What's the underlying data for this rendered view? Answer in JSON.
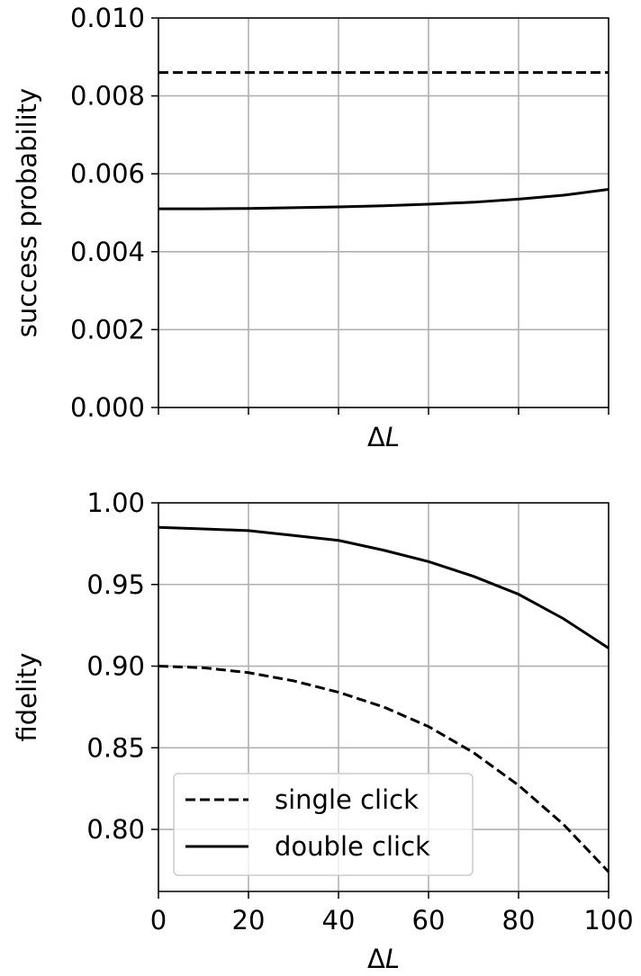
{
  "chart_data": [
    {
      "type": "line",
      "title": "",
      "xlabel": "ΔL",
      "ylabel": "success probability",
      "xlim": [
        0,
        100
      ],
      "ylim": [
        0,
        0.01
      ],
      "xticks": [
        0,
        20,
        40,
        60,
        80,
        100
      ],
      "show_x_tick_labels": false,
      "yticks": [
        0.0,
        0.002,
        0.004,
        0.006,
        0.008,
        0.01
      ],
      "ytick_labels": [
        "0.000",
        "0.002",
        "0.004",
        "0.006",
        "0.008",
        "0.010"
      ],
      "grid": true,
      "series": [
        {
          "style": "dashed",
          "color": "#000000",
          "x": [
            0,
            20,
            40,
            60,
            80,
            100
          ],
          "y": [
            0.0086,
            0.0086,
            0.0086,
            0.0086,
            0.0086,
            0.0086
          ]
        },
        {
          "style": "solid",
          "color": "#000000",
          "x": [
            0,
            10,
            20,
            30,
            40,
            50,
            60,
            70,
            80,
            90,
            100
          ],
          "y": [
            0.0051,
            0.0051,
            0.00511,
            0.00513,
            0.00515,
            0.00518,
            0.00522,
            0.00527,
            0.00535,
            0.00545,
            0.0056
          ]
        }
      ]
    },
    {
      "type": "line",
      "title": "",
      "xlabel": "ΔL",
      "ylabel": "fidelity",
      "xlim": [
        0,
        100
      ],
      "ylim": [
        0.762,
        1.0
      ],
      "xticks": [
        0,
        20,
        40,
        60,
        80,
        100
      ],
      "xtick_labels": [
        "0",
        "20",
        "40",
        "60",
        "80",
        "100"
      ],
      "yticks": [
        0.8,
        0.85,
        0.9,
        0.95,
        1.0
      ],
      "ytick_labels": [
        "0.80",
        "0.85",
        "0.90",
        "0.95",
        "1.00"
      ],
      "grid": true,
      "legend": {
        "position": "lower-left",
        "entries": [
          {
            "label": "single click",
            "style": "dashed"
          },
          {
            "label": "double click",
            "style": "solid"
          }
        ]
      },
      "series": [
        {
          "name": "single click",
          "style": "dashed",
          "color": "#000000",
          "x": [
            0,
            10,
            20,
            30,
            40,
            50,
            60,
            70,
            80,
            90,
            100
          ],
          "y": [
            0.9,
            0.899,
            0.896,
            0.891,
            0.884,
            0.875,
            0.863,
            0.847,
            0.827,
            0.803,
            0.774
          ]
        },
        {
          "name": "double click",
          "style": "solid",
          "color": "#000000",
          "x": [
            0,
            10,
            20,
            30,
            40,
            50,
            60,
            70,
            80,
            90,
            100
          ],
          "y": [
            0.985,
            0.984,
            0.983,
            0.98,
            0.977,
            0.971,
            0.964,
            0.955,
            0.944,
            0.929,
            0.911
          ]
        }
      ]
    }
  ]
}
